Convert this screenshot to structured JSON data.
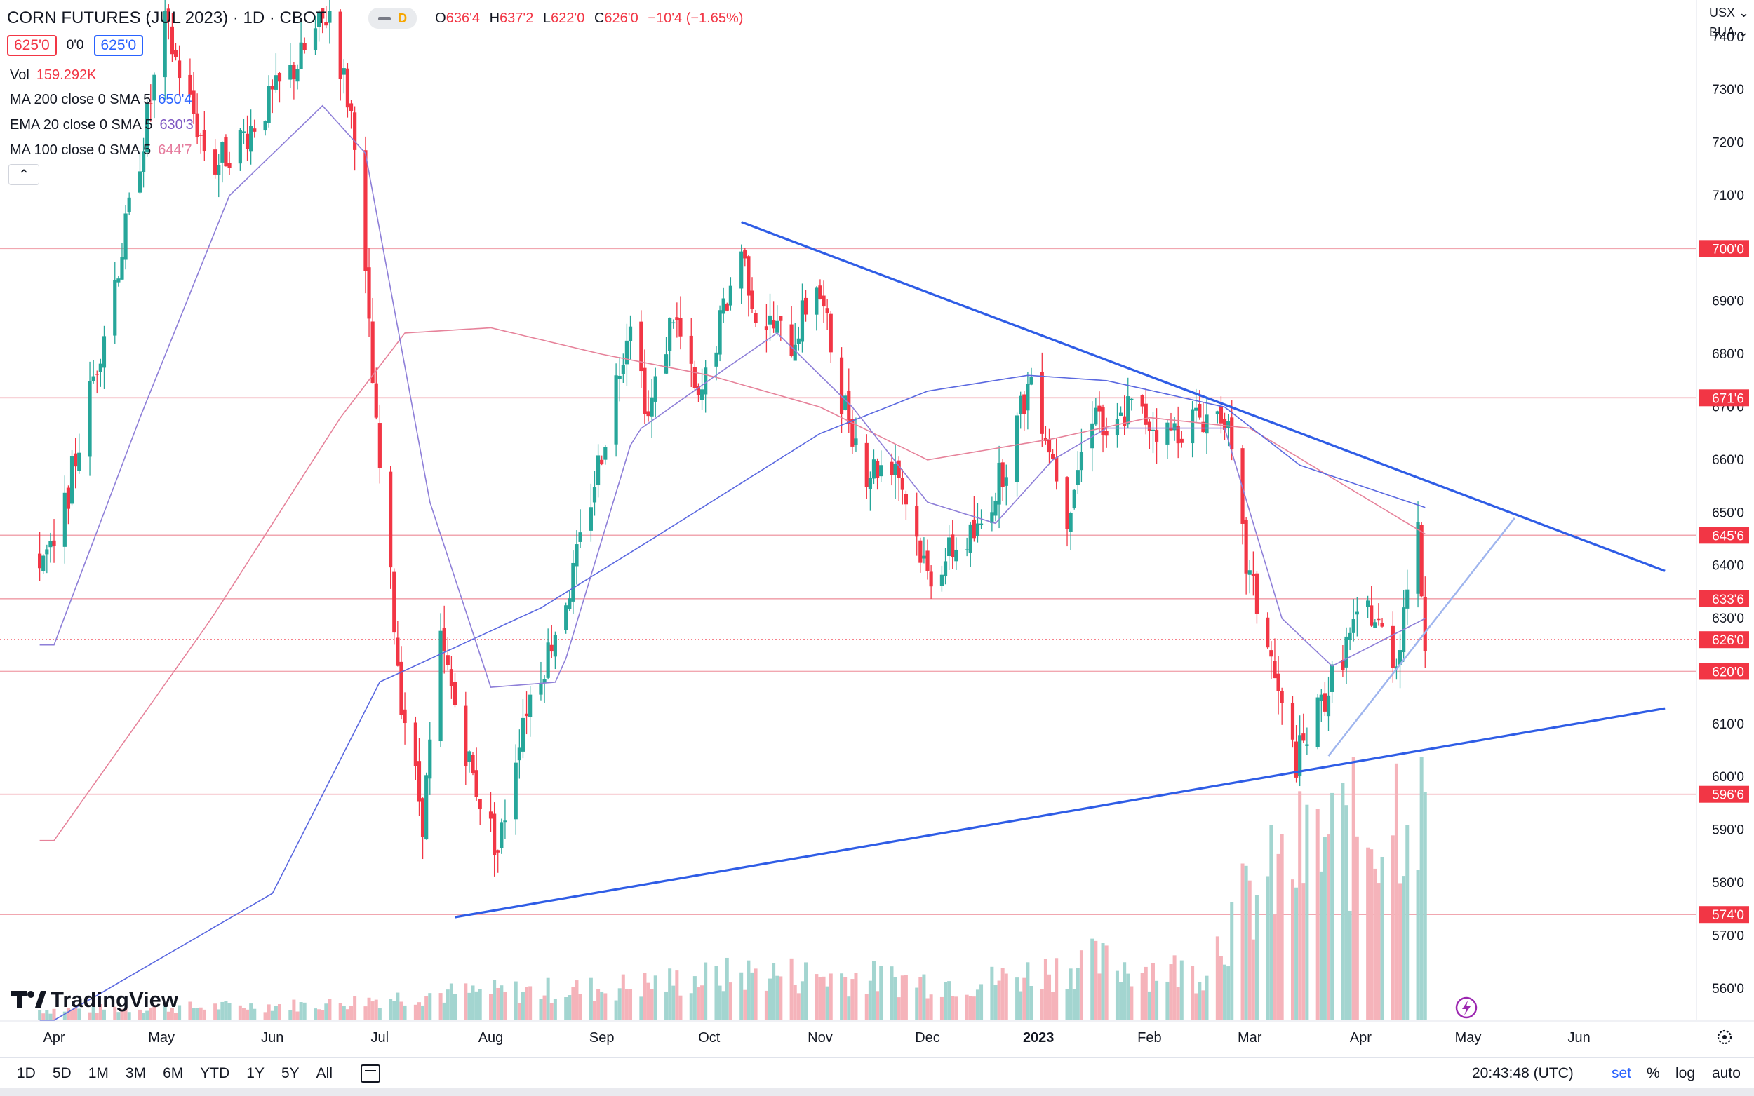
{
  "header": {
    "symbol_line": "CORN FUTURES (JUL 2023) · 1D · CBOT",
    "pill_letter": "D",
    "ohlc": {
      "o_label": "O",
      "o": "636'4",
      "h_label": "H",
      "h": "637'2",
      "l_label": "L",
      "l": "622'0",
      "c_label": "C",
      "c": "626'0",
      "change": "−10'4 (−1.65%)"
    },
    "sell_price": "625'0",
    "spread": "0'0",
    "buy_price": "625'0",
    "indicators": [
      {
        "label": "Vol",
        "value": "159.292K",
        "color": "#f23645"
      },
      {
        "label": "MA 200 close 0 SMA 5",
        "value": "650'4",
        "color": "#2962ff"
      },
      {
        "label": "EMA 20 close 0 SMA 5",
        "value": "630'3",
        "color": "#7e57c2"
      },
      {
        "label": "MA 100 close 0 SMA 5",
        "value": "644'7",
        "color": "#e57a9c"
      }
    ],
    "collapse_glyph": "⌃"
  },
  "top_right": {
    "currency": "USX",
    "currency_arrow": "⌄",
    "exchange": "BUA",
    "exchange_arrow": "⌄"
  },
  "watermark": "TradingView",
  "toolbar": {
    "timeframes": [
      "1D",
      "5D",
      "1M",
      "3M",
      "6M",
      "YTD",
      "1Y",
      "5Y",
      "All"
    ],
    "clock": "20:43:48 (UTC)",
    "options": {
      "set": "set",
      "percent": "%",
      "log": "log",
      "auto": "auto"
    }
  },
  "colors": {
    "up": "#26a69a",
    "down": "#f23645",
    "trend": "#2f5de6",
    "trend_light": "#9fb5ee",
    "ma200": "#5a68e0",
    "ema20": "#8e7fd8",
    "ma100": "#e6829a",
    "hline": "#f1a7b0",
    "vol_up": "#a3d5d0",
    "vol_down": "#f5b3ba"
  },
  "chart_data": {
    "type": "candlestick",
    "title": "CORN FUTURES (JUL 2023) · 1D · CBOT",
    "ylim": [
      554,
      747
    ],
    "y_ticks": [
      "560'0",
      "570'0",
      "580'0",
      "590'0",
      "600'0",
      "610'0",
      "620'0",
      "630'0",
      "640'0",
      "650'0",
      "660'0",
      "670'0",
      "680'0",
      "690'0",
      "700'0",
      "710'0",
      "720'0",
      "730'0",
      "740'0"
    ],
    "x_labels": [
      "Apr",
      "May",
      "Jun",
      "Jul",
      "Aug",
      "Sep",
      "Oct",
      "Nov",
      "Dec",
      "2023",
      "Feb",
      "Mar",
      "Apr",
      "May",
      "Jun"
    ],
    "price_levels": [
      {
        "label": "700'0",
        "value": 700.0
      },
      {
        "label": "671'6",
        "value": 671.75
      },
      {
        "label": "645'6",
        "value": 645.75
      },
      {
        "label": "633'6",
        "value": 633.75
      },
      {
        "label": "626'0",
        "value": 626.0
      },
      {
        "label": "620'0",
        "value": 620.0
      },
      {
        "label": "596'6",
        "value": 596.75
      },
      {
        "label": "574'0",
        "value": 574.0
      }
    ],
    "last_price": 626.0,
    "price_anchors": [
      [
        "2022-04-01",
        642
      ],
      [
        "2022-04-20",
        700
      ],
      [
        "2022-05-02",
        742
      ],
      [
        "2022-05-15",
        715
      ],
      [
        "2022-05-25",
        722
      ],
      [
        "2022-06-08",
        735
      ],
      [
        "2022-06-17",
        745
      ],
      [
        "2022-06-24",
        722
      ],
      [
        "2022-06-30",
        665
      ],
      [
        "2022-07-07",
        615
      ],
      [
        "2022-07-13",
        592
      ],
      [
        "2022-07-18",
        625
      ],
      [
        "2022-07-27",
        600
      ],
      [
        "2022-08-03",
        586
      ],
      [
        "2022-08-10",
        612
      ],
      [
        "2022-08-16",
        622
      ],
      [
        "2022-08-24",
        638
      ],
      [
        "2022-09-02",
        665
      ],
      [
        "2022-09-09",
        688
      ],
      [
        "2022-09-14",
        668
      ],
      [
        "2022-09-21",
        688
      ],
      [
        "2022-09-28",
        670
      ],
      [
        "2022-10-05",
        688
      ],
      [
        "2022-10-10",
        700
      ],
      [
        "2022-10-14",
        688
      ],
      [
        "2022-10-24",
        682
      ],
      [
        "2022-10-31",
        694
      ],
      [
        "2022-11-07",
        672
      ],
      [
        "2022-11-14",
        658
      ],
      [
        "2022-11-22",
        660
      ],
      [
        "2022-12-01",
        638
      ],
      [
        "2022-12-08",
        643
      ],
      [
        "2022-12-15",
        646
      ],
      [
        "2022-12-23",
        660
      ],
      [
        "2022-12-30",
        676
      ],
      [
        "2023-01-09",
        650
      ],
      [
        "2023-01-17",
        672
      ],
      [
        "2023-01-20",
        662
      ],
      [
        "2023-01-26",
        670
      ],
      [
        "2023-02-06",
        665
      ],
      [
        "2023-02-14",
        668
      ],
      [
        "2023-02-22",
        669
      ],
      [
        "2023-02-28",
        640
      ],
      [
        "2023-03-06",
        625
      ],
      [
        "2023-03-10",
        612
      ],
      [
        "2023-03-14",
        603
      ],
      [
        "2023-03-20",
        612
      ],
      [
        "2023-03-28",
        625
      ],
      [
        "2023-04-03",
        632
      ],
      [
        "2023-04-11",
        622
      ],
      [
        "2023-04-14",
        637
      ],
      [
        "2023-04-17",
        645
      ],
      [
        "2023-04-19",
        626
      ]
    ],
    "volume_anchors": [
      [
        "2022-04-01",
        4
      ],
      [
        "2022-06-15",
        6
      ],
      [
        "2022-07-15",
        10
      ],
      [
        "2022-09-01",
        12
      ],
      [
        "2022-10-15",
        18
      ],
      [
        "2022-11-15",
        16
      ],
      [
        "2022-12-15",
        14
      ],
      [
        "2023-01-15",
        22
      ],
      [
        "2023-02-15",
        18
      ],
      [
        "2023-02-25",
        40
      ],
      [
        "2023-03-15",
        62
      ],
      [
        "2023-04-05",
        75
      ],
      [
        "2023-04-19",
        95
      ]
    ],
    "ma_anchors": {
      "ma200": [
        [
          "2022-04-01",
          554
        ],
        [
          "2022-06-01",
          578
        ],
        [
          "2022-07-01",
          618
        ],
        [
          "2022-08-15",
          632
        ],
        [
          "2022-09-15",
          645
        ],
        [
          "2022-11-01",
          665
        ],
        [
          "2022-12-01",
          673
        ],
        [
          "2022-12-29",
          676
        ],
        [
          "2023-01-20",
          675
        ],
        [
          "2023-02-22",
          670
        ],
        [
          "2023-03-15",
          659
        ],
        [
          "2023-04-19",
          651
        ]
      ],
      "ema20": [
        [
          "2022-04-01",
          625
        ],
        [
          "2022-04-25",
          668
        ],
        [
          "2022-05-20",
          710
        ],
        [
          "2022-06-15",
          727
        ],
        [
          "2022-06-27",
          718
        ],
        [
          "2022-07-15",
          652
        ],
        [
          "2022-08-01",
          617
        ],
        [
          "2022-08-20",
          618
        ],
        [
          "2022-09-10",
          665
        ],
        [
          "2022-10-05",
          677
        ],
        [
          "2022-10-20",
          684
        ],
        [
          "2022-11-10",
          670
        ],
        [
          "2022-12-01",
          652
        ],
        [
          "2022-12-20",
          648
        ],
        [
          "2023-01-05",
          660
        ],
        [
          "2023-01-20",
          666
        ],
        [
          "2023-02-22",
          666
        ],
        [
          "2023-03-10",
          630
        ],
        [
          "2023-03-24",
          621
        ],
        [
          "2023-04-19",
          630
        ]
      ],
      "ma100": [
        [
          "2022-04-01",
          588
        ],
        [
          "2022-05-15",
          630
        ],
        [
          "2022-06-20",
          668
        ],
        [
          "2022-07-08",
          684
        ],
        [
          "2022-08-01",
          685
        ],
        [
          "2022-09-01",
          680
        ],
        [
          "2022-10-01",
          676
        ],
        [
          "2022-11-01",
          670
        ],
        [
          "2022-12-01",
          660
        ],
        [
          "2023-01-05",
          664
        ],
        [
          "2023-02-01",
          668
        ],
        [
          "2023-03-01",
          666
        ],
        [
          "2023-04-19",
          646
        ]
      ]
    },
    "trendlines": [
      {
        "name": "upper",
        "from": [
          "2022-10-10",
          705
        ],
        "to": [
          "2023-06-25",
          639
        ]
      },
      {
        "name": "lower",
        "from": [
          "2022-07-22",
          573.5
        ],
        "to": [
          "2023-06-25",
          613
        ]
      },
      {
        "name": "channel",
        "from": [
          "2023-03-23",
          604
        ],
        "to": [
          "2023-05-14",
          649
        ]
      }
    ]
  }
}
